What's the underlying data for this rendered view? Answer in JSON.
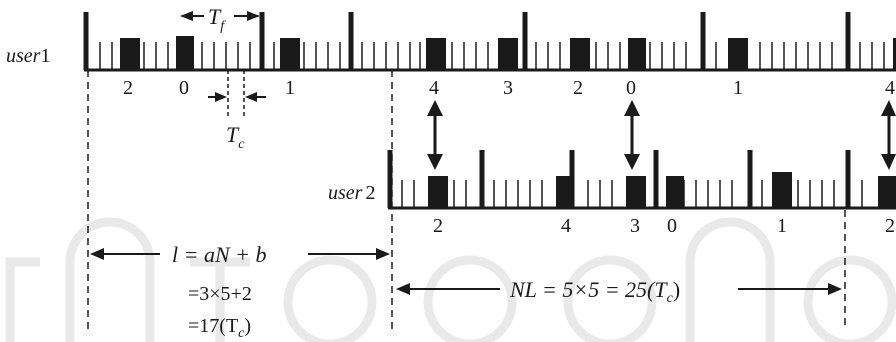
{
  "colors": {
    "ink": "#1a1a1a",
    "watermark": "#e9e9e9"
  },
  "user1": {
    "label_name": "user",
    "label_num": "1",
    "hop_labels": [
      "2",
      "0",
      "1",
      "4",
      "3",
      "2",
      "0",
      "1",
      "4"
    ]
  },
  "user2": {
    "label_name": "user",
    "label_num": "2",
    "hop_labels": [
      "2",
      "4",
      "3",
      "0",
      "1",
      "2"
    ]
  },
  "annotations": {
    "tf_main": "T",
    "tf_sub": "f",
    "tc_main": "T",
    "tc_sub": "c",
    "offset_formula": "l = aN + b",
    "offset_line2": "=3×5+2",
    "offset_line3_main": "=17(T",
    "offset_line3_sub": "c",
    "offset_line3_end": ")",
    "period_formula_main": "NL = 5×5 = 25(T",
    "period_formula_sub": "c",
    "period_formula_end": ")"
  }
}
